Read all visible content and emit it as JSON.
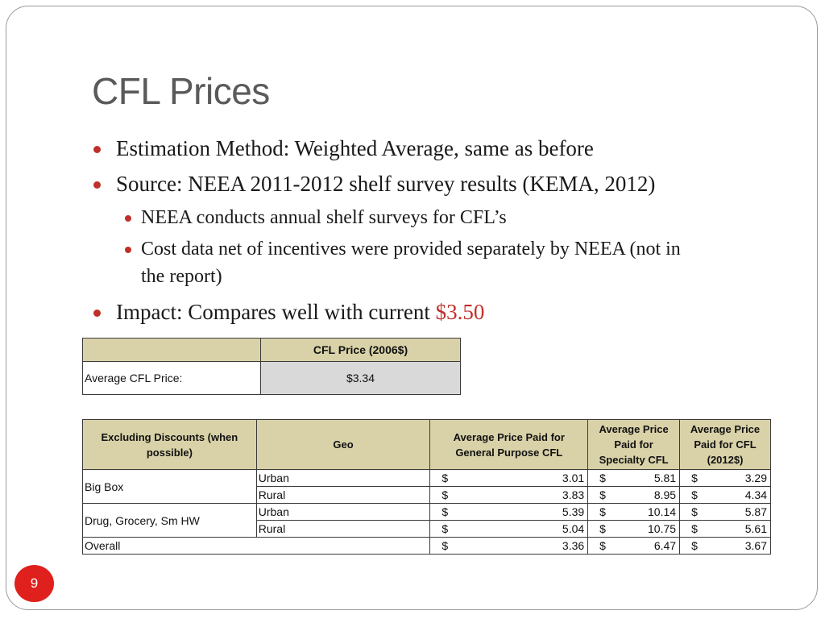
{
  "slide": {
    "title": "CFL Prices",
    "page_number": "9"
  },
  "bullets": [
    {
      "text": "Estimation Method: Weighted Average, same as before"
    },
    {
      "text": "Source: NEEA 2011-2012 shelf survey results (KEMA, 2012)"
    },
    {
      "text": "NEEA conducts annual shelf surveys for CFL’s"
    },
    {
      "text": "Cost data net of incentives were provided separately by NEEA (not in"
    },
    {
      "text": "the report)"
    },
    {
      "text": "Impact: Compares well with current ",
      "highlight": "$3.50"
    }
  ],
  "colors": {
    "accent": "#c0302a",
    "header_fill": "#d9d2a8",
    "value_fill": "#d9d9d9",
    "badge": "#e0201c"
  },
  "price_table": {
    "header": "CFL Price (2006$)",
    "row_label": "Average CFL Price:",
    "row_value": "$3.34"
  },
  "breakdown_table": {
    "columns": [
      "Excluding Discounts (when possible)",
      "Geo",
      "Average Price Paid for General Purpose CFL",
      "Average Price Paid for Specialty CFL",
      "Average Price Paid for CFL (2012$)"
    ],
    "currency": "$",
    "groups": [
      {
        "name": "Big Box",
        "rows": [
          {
            "geo": "Urban",
            "general": "3.01",
            "specialty": "5.81",
            "cfl2012": "3.29"
          },
          {
            "geo": "Rural",
            "general": "3.83",
            "specialty": "8.95",
            "cfl2012": "4.34"
          }
        ]
      },
      {
        "name": "Drug, Grocery, Sm HW",
        "rows": [
          {
            "geo": "Urban",
            "general": "5.39",
            "specialty": "10.14",
            "cfl2012": "5.87"
          },
          {
            "geo": "Rural",
            "general": "5.04",
            "specialty": "10.75",
            "cfl2012": "5.61"
          }
        ]
      }
    ],
    "overall": {
      "label": "Overall",
      "general": "3.36",
      "specialty": "6.47",
      "cfl2012": "3.67"
    }
  }
}
